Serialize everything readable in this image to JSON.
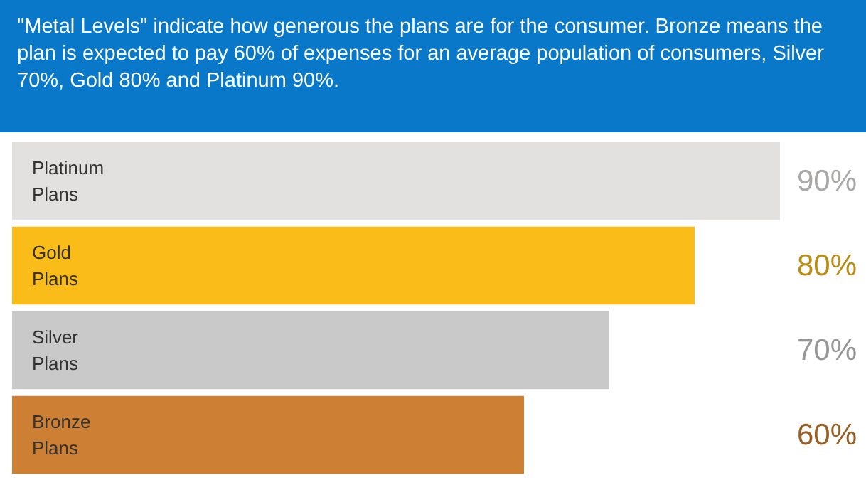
{
  "chart_data": {
    "type": "bar",
    "orientation": "horizontal",
    "title": "\"Metal Levels\" indicate how generous the plans are for the consumer. Bronze means the plan is expected to pay 60% of expenses for an average population of consumers, Silver 70%, Gold 80% and Platinum 90%.",
    "categories": [
      "Platinum Plans",
      "Gold Plans",
      "Silver Plans",
      "Bronze Plans"
    ],
    "values": [
      90,
      80,
      70,
      60
    ],
    "colors": [
      "#e2e1df",
      "#f9bc19",
      "#c9c9c9",
      "#cd8033"
    ],
    "value_labels": [
      "90%",
      "80%",
      "70%",
      "60%"
    ],
    "tick_labels": false,
    "grid": false
  }
}
